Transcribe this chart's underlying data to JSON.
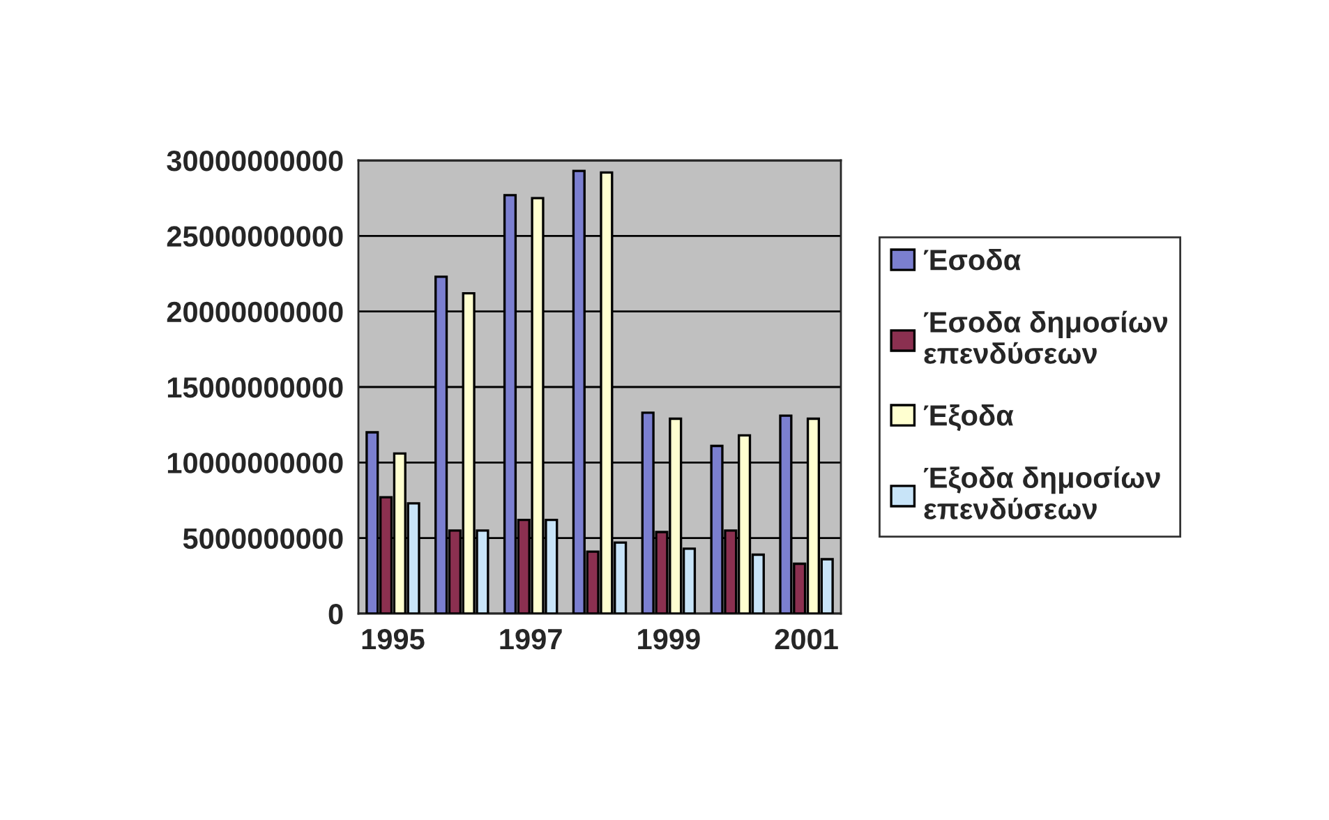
{
  "chart_data": {
    "type": "bar",
    "categories": [
      "1995",
      null,
      "1997",
      null,
      "1999",
      null,
      "2001"
    ],
    "series": [
      {
        "name": "Έσοδα",
        "color": "#7b7fd0",
        "values": [
          12000000000.0,
          22300000000.0,
          27700000000.0,
          29300000000.0,
          13300000000.0,
          11100000000.0,
          13100000000.0
        ]
      },
      {
        "name": "Έσοδα δημοσίων επενδύσεων",
        "color": "#8b3050",
        "values": [
          7700000000.0,
          5500000000.0,
          6200000000.0,
          4100000000.0,
          5400000000.0,
          5500000000.0,
          3300000000.0
        ]
      },
      {
        "name": "Έξοδα",
        "color": "#ffffd0",
        "values": [
          10600000000.0,
          21200000000.0,
          27500000000.0,
          29200000000.0,
          12900000000.0,
          11800000000.0,
          12900000000.0
        ]
      },
      {
        "name": "Έξοδα δημοσίων επενδύσεων",
        "color": "#c8e4f8",
        "values": [
          7300000000.0,
          5500000000.0,
          6200000000.0,
          4700000000.0,
          4300000000.0,
          3900000000.0,
          3600000000.0
        ]
      }
    ],
    "ylim": [
      0,
      30000000000
    ],
    "yticks": [
      0,
      5000000000,
      10000000000,
      15000000000,
      20000000000,
      25000000000,
      30000000000
    ],
    "grid": "y",
    "legend": "right"
  }
}
